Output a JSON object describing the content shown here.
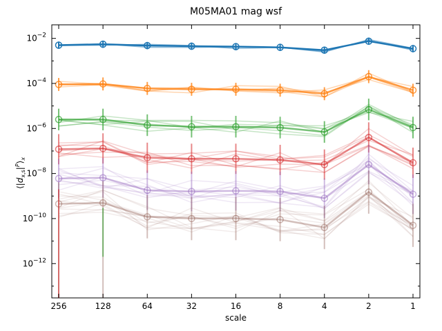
{
  "chart_data": {
    "type": "line",
    "title": "M05MA01 mag wsf",
    "xlabel": "scale",
    "ylabel": "⟨|d_{x,s}|^P⟩_x",
    "x_scale": "log2",
    "x_direction": "reversed",
    "x_ticks": [
      256,
      128,
      64,
      32,
      16,
      8,
      4,
      2,
      1
    ],
    "x_tick_labels": [
      "256",
      "128",
      "64",
      "32",
      "16",
      "8",
      "4",
      "2",
      "1"
    ],
    "y_scale": "log10",
    "ylim": [
      3e-14,
      0.04
    ],
    "y_ticks": [
      0.01,
      0.0001,
      1e-06,
      1e-08,
      1e-10,
      1e-12
    ],
    "y_tick_labels": [
      {
        "base": "10",
        "exp": "−2"
      },
      {
        "base": "10",
        "exp": "−4"
      },
      {
        "base": "10",
        "exp": "−6"
      },
      {
        "base": "10",
        "exp": "−8"
      },
      {
        "base": "10",
        "exp": "−10"
      },
      {
        "base": "10",
        "exp": "−12"
      }
    ],
    "grid": false,
    "series": [
      {
        "color": "#1f77b4",
        "opacity": 0.85,
        "band": 0.1,
        "alt_count": 2,
        "values": [
          0.005,
          0.0055,
          0.0048,
          0.0045,
          0.0043,
          0.004,
          0.003,
          0.0075,
          0.0035
        ]
      },
      {
        "color": "#ff7f0e",
        "opacity": 0.55,
        "band": 0.18,
        "alt_count": 4,
        "values": [
          9e-05,
          9.5e-05,
          6e-05,
          5.5e-05,
          5.5e-05,
          5e-05,
          3.5e-05,
          0.0002,
          5e-05
        ]
      },
      {
        "color": "#2ca02c",
        "opacity": 0.45,
        "band": 0.3,
        "alt_count": 6,
        "values": [
          2.5e-06,
          2.5e-06,
          1.4e-06,
          1.2e-06,
          1.2e-06,
          1.1e-06,
          7e-07,
          7e-06,
          1.1e-06
        ]
      },
      {
        "color": "#d62728",
        "opacity": 0.35,
        "band": 0.42,
        "alt_count": 8,
        "values": [
          1.2e-07,
          1.3e-07,
          5e-08,
          4.5e-08,
          4.5e-08,
          4e-08,
          2.5e-08,
          4e-07,
          3e-08
        ]
      },
      {
        "color": "#9467bd",
        "opacity": 0.25,
        "band": 0.55,
        "alt_count": 10,
        "values": [
          6e-09,
          6.5e-09,
          1.8e-09,
          1.6e-09,
          1.7e-09,
          1.6e-09,
          8e-10,
          2.5e-08,
          1.2e-09
        ]
      },
      {
        "color": "#8c564b",
        "opacity": 0.18,
        "band": 0.6,
        "alt_count": 12,
        "values": [
          4.5e-10,
          5e-10,
          1.2e-10,
          1e-10,
          1e-10,
          9e-11,
          4e-11,
          1.5e-09,
          5e-11
        ]
      }
    ]
  }
}
